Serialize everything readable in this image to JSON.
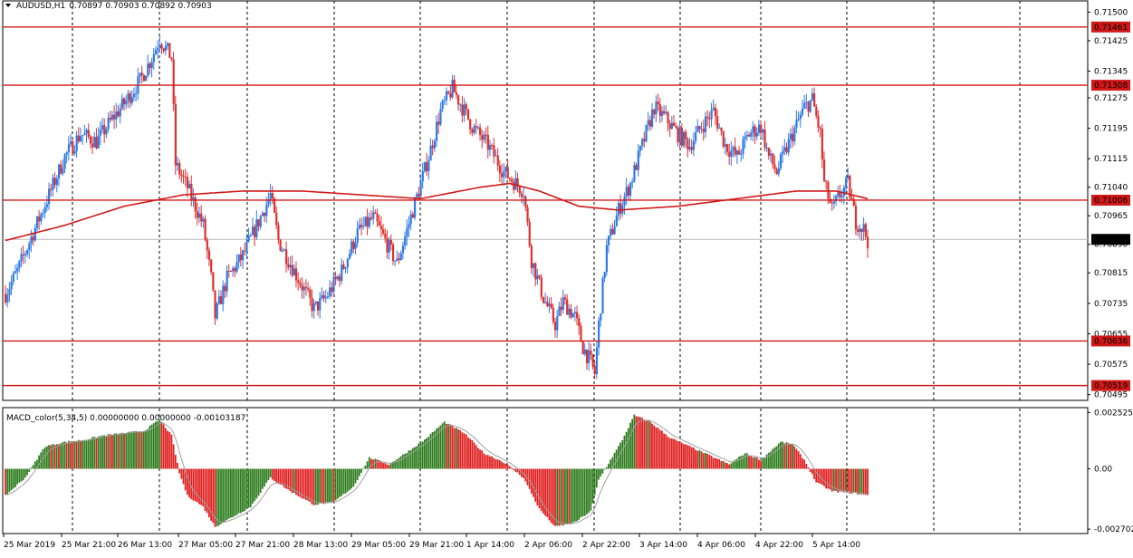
{
  "header": {
    "symbol": "AUDUSD,H1",
    "ohlc": "0.70897 0.70903 0.70892 0.70903",
    "indicator": "MACD_color(5,34,5) 0.00000000 0.00000000 -0.00103187"
  },
  "colors": {
    "bull": "#2f7ae5",
    "bear": "#e02f2f",
    "ma": "#d01818",
    "level": "#d01818",
    "macd_pos_up": "#2e7d1e",
    "macd_down": "#e02020",
    "signal": "#a0a0a0"
  },
  "price_axis": {
    "ticks": [
      "0.71500",
      "0.71425",
      "0.71345",
      "0.71275",
      "0.71195",
      "0.71115",
      "0.71040",
      "0.70965",
      "0.70890",
      "0.70815",
      "0.70735",
      "0.70655",
      "0.70575",
      "0.70495"
    ],
    "tick_values": [
      0.715,
      0.71425,
      0.71345,
      0.71275,
      0.71195,
      0.71115,
      0.7104,
      0.70965,
      0.7089,
      0.70815,
      0.70735,
      0.70655,
      0.70575,
      0.70495
    ],
    "ylim": [
      0.7048,
      0.7152
    ]
  },
  "levels": [
    {
      "label": "0.71461",
      "value": 0.71461
    },
    {
      "label": "0.71308",
      "value": 0.71308
    },
    {
      "label": "0.71006",
      "value": 0.71006
    },
    {
      "label": "0.70636",
      "value": 0.70636
    },
    {
      "label": "0.70519",
      "value": 0.70519
    }
  ],
  "current_price": {
    "label": "0.70903",
    "value": 0.70903
  },
  "macd_axis": {
    "ticks": [
      "0.0025251",
      "0.00",
      "-0.0027026"
    ],
    "tick_values": [
      0.0025251,
      0.0,
      -0.0027026
    ],
    "ylim": [
      -0.0029,
      0.0027
    ]
  },
  "time_axis": {
    "labels": [
      "25 Mar 2019",
      "25 Mar 21:00",
      "26 Mar 13:00",
      "27 Mar 05:00",
      "27 Mar 21:00",
      "28 Mar 13:00",
      "29 Mar 05:00",
      "29 Mar 21:00",
      "1 Apr 14:00",
      "2 Apr 06:00",
      "2 Apr 22:00",
      "3 Apr 14:00",
      "4 Apr 06:00",
      "4 Apr 22:00",
      "5 Apr 14:00"
    ]
  },
  "chart_data": {
    "type": "candlestick",
    "symbol": "AUDUSD",
    "timeframe": "H1",
    "close_path": [
      [
        0,
        0.7076
      ],
      [
        6,
        0.7082
      ],
      [
        14,
        0.7092
      ],
      [
        22,
        0.7102
      ],
      [
        30,
        0.7112
      ],
      [
        38,
        0.7118
      ],
      [
        46,
        0.7116
      ],
      [
        54,
        0.7122
      ],
      [
        60,
        0.7126
      ],
      [
        68,
        0.7132
      ],
      [
        74,
        0.7138
      ],
      [
        78,
        0.7143
      ],
      [
        84,
        0.7138
      ],
      [
        86,
        0.711
      ],
      [
        92,
        0.7104
      ],
      [
        100,
        0.7094
      ],
      [
        104,
        0.708
      ],
      [
        106,
        0.707
      ],
      [
        112,
        0.708
      ],
      [
        120,
        0.7086
      ],
      [
        128,
        0.7095
      ],
      [
        134,
        0.7102
      ],
      [
        138,
        0.709
      ],
      [
        144,
        0.7084
      ],
      [
        150,
        0.7078
      ],
      [
        156,
        0.7072
      ],
      [
        162,
        0.7075
      ],
      [
        170,
        0.7082
      ],
      [
        178,
        0.7092
      ],
      [
        186,
        0.7096
      ],
      [
        192,
        0.709
      ],
      [
        198,
        0.7084
      ],
      [
        206,
        0.7098
      ],
      [
        214,
        0.7112
      ],
      [
        220,
        0.7124
      ],
      [
        226,
        0.713
      ],
      [
        230,
        0.7126
      ],
      [
        236,
        0.712
      ],
      [
        244,
        0.7115
      ],
      [
        252,
        0.7108
      ],
      [
        258,
        0.7105
      ],
      [
        262,
        0.7103
      ],
      [
        266,
        0.7085
      ],
      [
        272,
        0.7075
      ],
      [
        278,
        0.7068
      ],
      [
        282,
        0.7074
      ],
      [
        288,
        0.707
      ],
      [
        292,
        0.7062
      ],
      [
        296,
        0.7058
      ],
      [
        298,
        0.7055
      ],
      [
        300,
        0.7068
      ],
      [
        304,
        0.7088
      ],
      [
        310,
        0.7098
      ],
      [
        316,
        0.7105
      ],
      [
        322,
        0.7115
      ],
      [
        328,
        0.7125
      ],
      [
        334,
        0.7122
      ],
      [
        340,
        0.7118
      ],
      [
        346,
        0.7115
      ],
      [
        352,
        0.712
      ],
      [
        358,
        0.7124
      ],
      [
        364,
        0.7115
      ],
      [
        370,
        0.7112
      ],
      [
        376,
        0.7118
      ],
      [
        382,
        0.712
      ],
      [
        386,
        0.7112
      ],
      [
        390,
        0.7108
      ],
      [
        398,
        0.7118
      ],
      [
        404,
        0.7125
      ],
      [
        408,
        0.7127
      ],
      [
        412,
        0.7118
      ],
      [
        414,
        0.7105
      ],
      [
        418,
        0.7098
      ],
      [
        422,
        0.7102
      ],
      [
        426,
        0.7105
      ],
      [
        430,
        0.7095
      ],
      [
        434,
        0.7093
      ],
      [
        436,
        0.709
      ]
    ],
    "ma_path": [
      [
        0,
        0.709
      ],
      [
        30,
        0.7094
      ],
      [
        60,
        0.7099
      ],
      [
        90,
        0.7102
      ],
      [
        120,
        0.7103
      ],
      [
        150,
        0.7103
      ],
      [
        180,
        0.7102
      ],
      [
        210,
        0.7101
      ],
      [
        240,
        0.7104
      ],
      [
        255,
        0.7105
      ],
      [
        270,
        0.7103
      ],
      [
        290,
        0.7099
      ],
      [
        310,
        0.7098
      ],
      [
        340,
        0.7099
      ],
      [
        370,
        0.7101
      ],
      [
        400,
        0.7103
      ],
      [
        420,
        0.7103
      ],
      [
        436,
        0.7101
      ]
    ],
    "n_bars": 437,
    "macd_path": [
      [
        0,
        -0.0012
      ],
      [
        10,
        -0.0004
      ],
      [
        20,
        0.001
      ],
      [
        30,
        0.0012
      ],
      [
        40,
        0.0013
      ],
      [
        50,
        0.0015
      ],
      [
        60,
        0.0016
      ],
      [
        70,
        0.0017
      ],
      [
        78,
        0.0022
      ],
      [
        84,
        0.0015
      ],
      [
        88,
        -0.0002
      ],
      [
        92,
        -0.0012
      ],
      [
        100,
        -0.0017
      ],
      [
        106,
        -0.0026
      ],
      [
        114,
        -0.0022
      ],
      [
        124,
        -0.0017
      ],
      [
        134,
        -0.0004
      ],
      [
        144,
        -0.001
      ],
      [
        156,
        -0.0016
      ],
      [
        166,
        -0.0015
      ],
      [
        176,
        -0.0008
      ],
      [
        184,
        0.0005
      ],
      [
        194,
        0.0002
      ],
      [
        204,
        0.0008
      ],
      [
        212,
        0.0013
      ],
      [
        222,
        0.0021
      ],
      [
        232,
        0.0016
      ],
      [
        242,
        0.0007
      ],
      [
        252,
        0.0003
      ],
      [
        262,
        -0.0004
      ],
      [
        270,
        -0.0018
      ],
      [
        278,
        -0.0026
      ],
      [
        288,
        -0.0024
      ],
      [
        296,
        -0.0019
      ],
      [
        300,
        -0.0005
      ],
      [
        306,
        0.0004
      ],
      [
        312,
        0.0013
      ],
      [
        318,
        0.0024
      ],
      [
        326,
        0.0021
      ],
      [
        336,
        0.0014
      ],
      [
        346,
        0.001
      ],
      [
        356,
        0.0006
      ],
      [
        366,
        0.0002
      ],
      [
        374,
        0.0007
      ],
      [
        382,
        0.0004
      ],
      [
        392,
        0.0012
      ],
      [
        398,
        0.0011
      ],
      [
        404,
        0.0004
      ],
      [
        410,
        -0.0006
      ],
      [
        418,
        -0.001
      ],
      [
        430,
        -0.0011
      ],
      [
        436,
        -0.0012
      ]
    ]
  }
}
